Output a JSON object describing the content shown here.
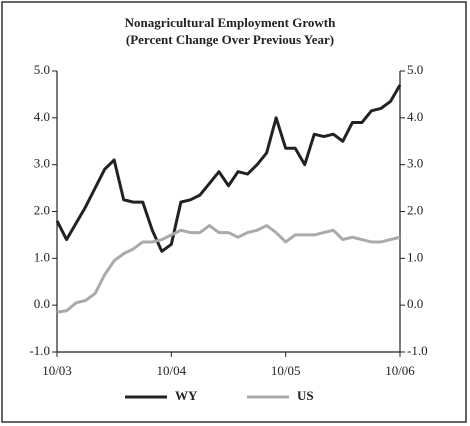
{
  "chart_data": {
    "type": "line",
    "title": "Nonagricultural Employment Growth",
    "subtitle": "(Percent Change Over Previous Year)",
    "categories": [
      "10/03",
      null,
      null,
      null,
      null,
      null,
      null,
      null,
      null,
      null,
      null,
      null,
      "10/04",
      null,
      null,
      null,
      null,
      null,
      null,
      null,
      null,
      null,
      null,
      null,
      "10/05",
      null,
      null,
      null,
      null,
      null,
      null,
      null,
      null,
      null,
      null,
      null,
      "10/06"
    ],
    "series": [
      {
        "name": "WY",
        "color": "#222222",
        "values": [
          1.8,
          1.4,
          1.75,
          2.1,
          2.5,
          2.9,
          3.1,
          2.25,
          2.2,
          2.2,
          1.6,
          1.15,
          1.3,
          2.2,
          2.25,
          2.35,
          2.6,
          2.85,
          2.55,
          2.85,
          2.8,
          3.0,
          3.25,
          4.0,
          3.35,
          3.35,
          3.0,
          3.65,
          3.6,
          3.65,
          3.5,
          3.9,
          3.9,
          4.15,
          4.2,
          4.35,
          4.7
        ]
      },
      {
        "name": "US",
        "color": "#aaaaaa",
        "values": [
          -0.15,
          -0.12,
          0.05,
          0.1,
          0.25,
          0.65,
          0.95,
          1.1,
          1.2,
          1.35,
          1.35,
          1.4,
          1.5,
          1.6,
          1.55,
          1.55,
          1.7,
          1.55,
          1.55,
          1.45,
          1.55,
          1.6,
          1.7,
          1.55,
          1.35,
          1.5,
          1.5,
          1.5,
          1.55,
          1.6,
          1.4,
          1.45,
          1.4,
          1.35,
          1.35,
          1.4,
          1.45
        ]
      }
    ],
    "ylim": [
      -1,
      5
    ],
    "yticks": [
      {
        "value": -1,
        "label": "-1.0"
      },
      {
        "value": 0,
        "label": "0.0"
      },
      {
        "value": 1,
        "label": "1.0"
      },
      {
        "value": 2,
        "label": "2.0"
      },
      {
        "value": 3,
        "label": "3.0"
      },
      {
        "value": 4,
        "label": "4.0"
      },
      {
        "value": 5,
        "label": "5.0"
      }
    ],
    "y2lim": [
      -1,
      5
    ],
    "y2ticks": [
      {
        "value": -1,
        "label": "-1.0"
      },
      {
        "value": 0,
        "label": "0.0"
      },
      {
        "value": 1,
        "label": "1.0"
      },
      {
        "value": 2,
        "label": "2.0"
      },
      {
        "value": 3,
        "label": "3.0"
      },
      {
        "value": 4,
        "label": "4.0"
      },
      {
        "value": 5,
        "label": "5.0"
      }
    ],
    "grid": false,
    "legend": "bottom"
  }
}
